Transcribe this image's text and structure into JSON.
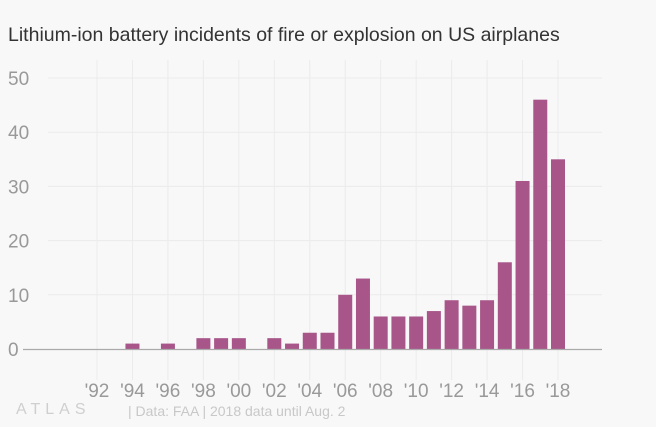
{
  "chart_data": {
    "type": "bar",
    "title": "Lithium-ion battery incidents of fire or explosion on US airplanes",
    "x": [
      1994,
      1996,
      1998,
      1999,
      2000,
      2002,
      2003,
      2004,
      2005,
      2006,
      2007,
      2008,
      2009,
      2010,
      2011,
      2012,
      2013,
      2014,
      2015,
      2016,
      2017,
      2018
    ],
    "values": [
      1,
      1,
      2,
      2,
      2,
      2,
      1,
      3,
      3,
      10,
      13,
      6,
      6,
      6,
      7,
      9,
      8,
      9,
      16,
      31,
      46,
      35
    ],
    "xticks": [
      1992,
      1994,
      1996,
      1998,
      2000,
      2002,
      2004,
      2006,
      2008,
      2010,
      2012,
      2014,
      2016,
      2018
    ],
    "xtick_labels": [
      "'92",
      "'94",
      "'96",
      "'98",
      "'00",
      "'02",
      "'04",
      "'06",
      "'08",
      "'10",
      "'12",
      "'14",
      "'16",
      "'18"
    ],
    "yticks": [
      0,
      10,
      20,
      30,
      40,
      50
    ],
    "ytick_labels": [
      "0",
      "10",
      "20",
      "30",
      "40",
      "50"
    ],
    "ylim": [
      0,
      50
    ],
    "xlabel": "",
    "ylabel": "",
    "grid": true,
    "bar_color": "#a8568a"
  },
  "footer": {
    "logo": "ATLAS",
    "source": "| Data: FAA | 2018 data until Aug. 2"
  }
}
